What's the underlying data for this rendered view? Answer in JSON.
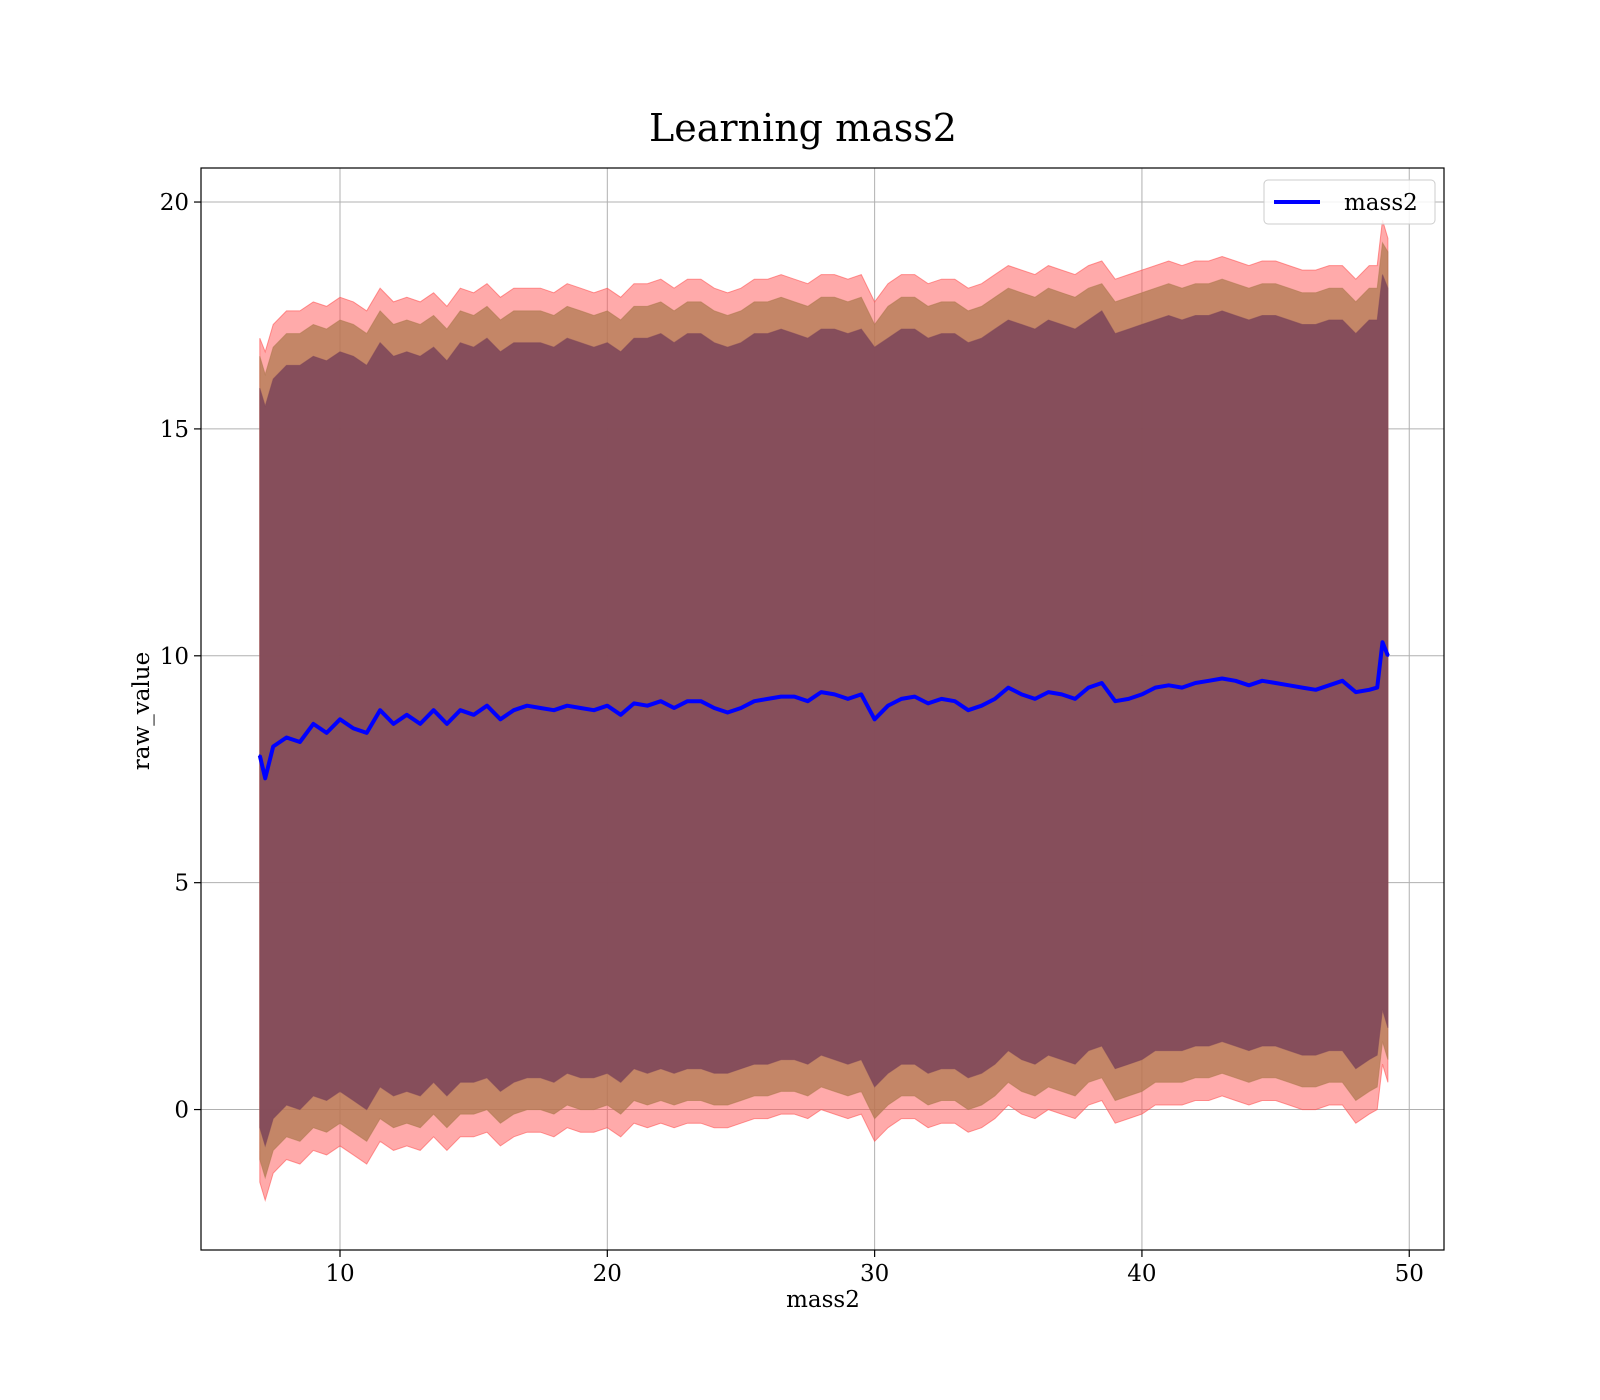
{
  "chart_data": {
    "type": "area",
    "title": "Learning mass2",
    "xlabel": "mass2",
    "ylabel": "raw_value",
    "xlim": [
      4.8,
      51.3
    ],
    "ylim": [
      -3.095,
      20.75
    ],
    "xticks": [
      10,
      20,
      30,
      40,
      50
    ],
    "yticks": [
      0,
      5,
      10,
      15,
      20
    ],
    "grid": true,
    "legend": {
      "position": "top-right",
      "entries": [
        "mass2"
      ]
    },
    "colors": {
      "line": "#0000ff",
      "band_outer": "#ff5555",
      "band_middle": "#b07a50",
      "band_inner": "#80485a",
      "grid": "#b0b0b0"
    },
    "x": [
      7.0,
      7.2,
      7.5,
      8.0,
      8.5,
      9.0,
      9.5,
      10.0,
      10.5,
      11.0,
      11.5,
      12.0,
      12.5,
      13.0,
      13.5,
      14.0,
      14.5,
      15.0,
      15.5,
      16.0,
      16.5,
      17.0,
      17.5,
      18.0,
      18.5,
      19.0,
      19.5,
      20.0,
      20.5,
      21.0,
      21.5,
      22.0,
      22.5,
      23.0,
      23.5,
      24.0,
      24.5,
      25.0,
      25.5,
      26.0,
      26.5,
      27.0,
      27.5,
      28.0,
      28.5,
      29.0,
      29.5,
      30.0,
      30.5,
      31.0,
      31.5,
      32.0,
      32.5,
      33.0,
      33.5,
      34.0,
      34.5,
      35.0,
      35.5,
      36.0,
      36.5,
      37.0,
      37.5,
      38.0,
      38.5,
      39.0,
      39.5,
      40.0,
      40.5,
      41.0,
      41.5,
      42.0,
      42.5,
      43.0,
      43.5,
      44.0,
      44.5,
      45.0,
      45.5,
      46.0,
      46.5,
      47.0,
      47.5,
      48.0,
      48.5,
      48.8,
      49.0,
      49.2
    ],
    "series": [
      {
        "name": "mass2",
        "values": [
          7.8,
          7.3,
          8.0,
          8.2,
          8.1,
          8.5,
          8.3,
          8.6,
          8.4,
          8.3,
          8.8,
          8.5,
          8.7,
          8.5,
          8.8,
          8.5,
          8.8,
          8.7,
          8.9,
          8.6,
          8.8,
          8.9,
          8.85,
          8.8,
          8.9,
          8.85,
          8.8,
          8.9,
          8.7,
          8.95,
          8.9,
          9.0,
          8.85,
          9.0,
          9.0,
          8.85,
          8.75,
          8.85,
          9.0,
          9.05,
          9.1,
          9.1,
          9.0,
          9.2,
          9.15,
          9.05,
          9.15,
          8.6,
          8.9,
          9.05,
          9.1,
          8.95,
          9.05,
          9.0,
          8.8,
          8.9,
          9.05,
          9.3,
          9.15,
          9.05,
          9.2,
          9.15,
          9.05,
          9.3,
          9.4,
          9.0,
          9.05,
          9.15,
          9.3,
          9.35,
          9.3,
          9.4,
          9.45,
          9.5,
          9.45,
          9.35,
          9.45,
          9.4,
          9.35,
          9.3,
          9.25,
          9.35,
          9.45,
          9.2,
          9.25,
          9.3,
          10.3,
          10.0
        ]
      }
    ],
    "bands": [
      {
        "layer": "outer",
        "upper": [
          17.0,
          16.7,
          17.3,
          17.6,
          17.6,
          17.8,
          17.7,
          17.9,
          17.8,
          17.6,
          18.1,
          17.8,
          17.9,
          17.8,
          18.0,
          17.7,
          18.1,
          18.0,
          18.2,
          17.9,
          18.1,
          18.1,
          18.1,
          18.0,
          18.2,
          18.1,
          18.0,
          18.1,
          17.9,
          18.2,
          18.2,
          18.3,
          18.1,
          18.3,
          18.3,
          18.1,
          18.0,
          18.1,
          18.3,
          18.3,
          18.4,
          18.3,
          18.2,
          18.4,
          18.4,
          18.3,
          18.4,
          17.8,
          18.2,
          18.4,
          18.4,
          18.2,
          18.3,
          18.3,
          18.1,
          18.2,
          18.4,
          18.6,
          18.5,
          18.4,
          18.6,
          18.5,
          18.4,
          18.6,
          18.7,
          18.3,
          18.4,
          18.5,
          18.6,
          18.7,
          18.6,
          18.7,
          18.7,
          18.8,
          18.7,
          18.6,
          18.7,
          18.7,
          18.6,
          18.5,
          18.5,
          18.6,
          18.6,
          18.3,
          18.6,
          18.6,
          19.6,
          19.2
        ],
        "lower": [
          -1.6,
          -2.0,
          -1.4,
          -1.1,
          -1.2,
          -0.9,
          -1.0,
          -0.8,
          -1.0,
          -1.2,
          -0.7,
          -0.9,
          -0.8,
          -0.9,
          -0.6,
          -0.9,
          -0.6,
          -0.6,
          -0.5,
          -0.8,
          -0.6,
          -0.5,
          -0.5,
          -0.6,
          -0.4,
          -0.5,
          -0.5,
          -0.4,
          -0.6,
          -0.3,
          -0.4,
          -0.3,
          -0.4,
          -0.3,
          -0.3,
          -0.4,
          -0.4,
          -0.3,
          -0.2,
          -0.2,
          -0.1,
          -0.1,
          -0.2,
          0.0,
          -0.1,
          -0.2,
          -0.1,
          -0.7,
          -0.4,
          -0.2,
          -0.2,
          -0.4,
          -0.3,
          -0.3,
          -0.5,
          -0.4,
          -0.2,
          0.1,
          -0.1,
          -0.2,
          0.0,
          -0.1,
          -0.2,
          0.1,
          0.2,
          -0.3,
          -0.2,
          -0.1,
          0.1,
          0.1,
          0.1,
          0.2,
          0.2,
          0.3,
          0.2,
          0.1,
          0.2,
          0.2,
          0.1,
          0.0,
          0.0,
          0.1,
          0.1,
          -0.3,
          -0.1,
          0.0,
          1.0,
          0.6
        ]
      },
      {
        "layer": "middle",
        "upper": [
          16.6,
          16.2,
          16.8,
          17.1,
          17.1,
          17.3,
          17.2,
          17.4,
          17.3,
          17.1,
          17.6,
          17.3,
          17.4,
          17.3,
          17.5,
          17.2,
          17.6,
          17.5,
          17.7,
          17.4,
          17.6,
          17.6,
          17.6,
          17.5,
          17.7,
          17.6,
          17.5,
          17.6,
          17.4,
          17.7,
          17.7,
          17.8,
          17.6,
          17.8,
          17.8,
          17.6,
          17.5,
          17.6,
          17.8,
          17.8,
          17.9,
          17.8,
          17.7,
          17.9,
          17.9,
          17.8,
          17.9,
          17.3,
          17.7,
          17.9,
          17.9,
          17.7,
          17.8,
          17.8,
          17.6,
          17.7,
          17.9,
          18.1,
          18.0,
          17.9,
          18.1,
          18.0,
          17.9,
          18.1,
          18.2,
          17.8,
          17.9,
          18.0,
          18.1,
          18.2,
          18.1,
          18.2,
          18.2,
          18.3,
          18.2,
          18.1,
          18.2,
          18.2,
          18.1,
          18.0,
          18.0,
          18.1,
          18.1,
          17.8,
          18.1,
          18.1,
          19.1,
          18.9
        ],
        "lower": [
          -1.1,
          -1.5,
          -0.9,
          -0.6,
          -0.7,
          -0.4,
          -0.5,
          -0.3,
          -0.5,
          -0.7,
          -0.2,
          -0.4,
          -0.3,
          -0.4,
          -0.1,
          -0.4,
          -0.1,
          -0.1,
          0.0,
          -0.3,
          -0.1,
          0.0,
          0.0,
          -0.1,
          0.1,
          0.0,
          0.0,
          0.1,
          -0.1,
          0.2,
          0.1,
          0.2,
          0.1,
          0.2,
          0.2,
          0.1,
          0.1,
          0.2,
          0.3,
          0.3,
          0.4,
          0.4,
          0.3,
          0.5,
          0.4,
          0.3,
          0.4,
          -0.2,
          0.1,
          0.3,
          0.3,
          0.1,
          0.2,
          0.2,
          0.0,
          0.1,
          0.3,
          0.6,
          0.4,
          0.3,
          0.5,
          0.4,
          0.3,
          0.6,
          0.7,
          0.2,
          0.3,
          0.4,
          0.6,
          0.6,
          0.6,
          0.7,
          0.7,
          0.8,
          0.7,
          0.6,
          0.7,
          0.7,
          0.6,
          0.5,
          0.5,
          0.6,
          0.6,
          0.2,
          0.4,
          0.5,
          1.5,
          1.1
        ]
      },
      {
        "layer": "inner",
        "upper": [
          15.9,
          15.5,
          16.1,
          16.4,
          16.4,
          16.6,
          16.5,
          16.7,
          16.6,
          16.4,
          16.9,
          16.6,
          16.7,
          16.6,
          16.8,
          16.5,
          16.9,
          16.8,
          17.0,
          16.7,
          16.9,
          16.9,
          16.9,
          16.8,
          17.0,
          16.9,
          16.8,
          16.9,
          16.7,
          17.0,
          17.0,
          17.1,
          16.9,
          17.1,
          17.1,
          16.9,
          16.8,
          16.9,
          17.1,
          17.1,
          17.2,
          17.1,
          17.0,
          17.2,
          17.2,
          17.1,
          17.2,
          16.8,
          17.0,
          17.2,
          17.2,
          17.0,
          17.1,
          17.1,
          16.9,
          17.0,
          17.2,
          17.4,
          17.3,
          17.2,
          17.4,
          17.3,
          17.2,
          17.4,
          17.6,
          17.1,
          17.2,
          17.3,
          17.4,
          17.5,
          17.4,
          17.5,
          17.5,
          17.6,
          17.5,
          17.4,
          17.5,
          17.5,
          17.4,
          17.3,
          17.3,
          17.4,
          17.4,
          17.1,
          17.4,
          17.4,
          18.4,
          18.1
        ],
        "lower": [
          -0.4,
          -0.8,
          -0.2,
          0.1,
          0.0,
          0.3,
          0.2,
          0.4,
          0.2,
          0.0,
          0.5,
          0.3,
          0.4,
          0.3,
          0.6,
          0.3,
          0.6,
          0.6,
          0.7,
          0.4,
          0.6,
          0.7,
          0.7,
          0.6,
          0.8,
          0.7,
          0.7,
          0.8,
          0.6,
          0.9,
          0.8,
          0.9,
          0.8,
          0.9,
          0.9,
          0.8,
          0.8,
          0.9,
          1.0,
          1.0,
          1.1,
          1.1,
          1.0,
          1.2,
          1.1,
          1.0,
          1.1,
          0.5,
          0.8,
          1.0,
          1.0,
          0.8,
          0.9,
          0.9,
          0.7,
          0.8,
          1.0,
          1.3,
          1.1,
          1.0,
          1.2,
          1.1,
          1.0,
          1.3,
          1.4,
          0.9,
          1.0,
          1.1,
          1.3,
          1.3,
          1.3,
          1.4,
          1.4,
          1.5,
          1.4,
          1.3,
          1.4,
          1.4,
          1.3,
          1.2,
          1.2,
          1.3,
          1.3,
          0.9,
          1.1,
          1.2,
          2.2,
          1.8
        ]
      }
    ]
  }
}
